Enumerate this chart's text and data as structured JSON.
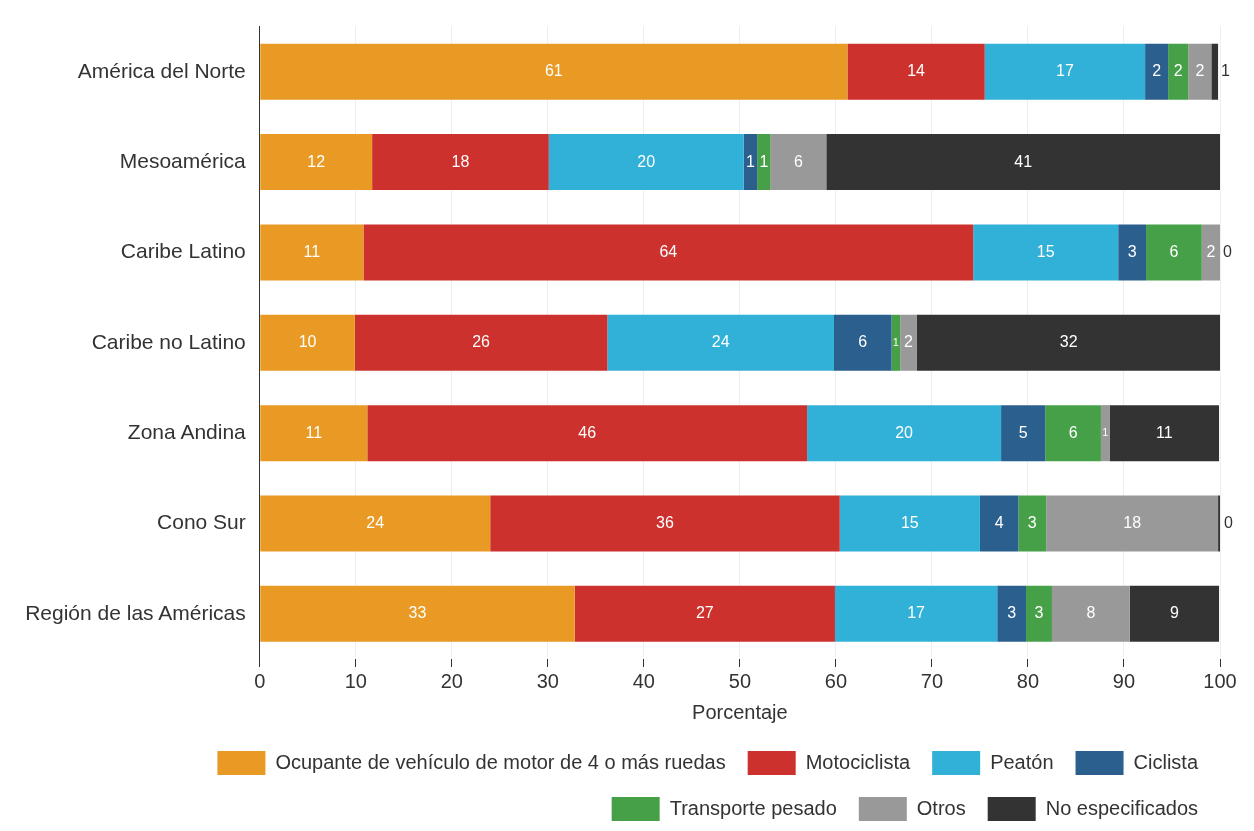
{
  "chart_data": {
    "type": "bar",
    "orientation": "horizontal",
    "stacked": true,
    "xlabel": "Porcentaje",
    "categories": [
      "América del Norte",
      "Mesoamérica",
      "Caribe Latino",
      "Caribe no Latino",
      "Zona Andina",
      "Cono Sur",
      "Región de las Américas"
    ],
    "xlim": [
      0,
      100
    ],
    "xticks": [
      0,
      10,
      20,
      30,
      40,
      50,
      60,
      70,
      80,
      90,
      100
    ],
    "grid": "x",
    "legend": "bottom",
    "series": [
      {
        "name": "Ocupante de vehículo de motor de 4 o más ruedas",
        "color": "#e99a24",
        "values": [
          61.2,
          11.7,
          10.8,
          9.9,
          11.2,
          24.0,
          32.8
        ],
        "value_labels": [
          "61",
          "12",
          "11",
          "10",
          "11",
          "24",
          "33"
        ]
      },
      {
        "name": "Motociclista",
        "color": "#cc312d",
        "values": [
          14.3,
          18.4,
          63.5,
          26.3,
          45.8,
          36.4,
          27.1
        ],
        "value_labels": [
          "14",
          "18",
          "64",
          "26",
          "46",
          "36",
          "27"
        ]
      },
      {
        "name": "Peatón",
        "color": "#31b0d8",
        "values": [
          16.7,
          20.3,
          15.1,
          23.6,
          20.2,
          14.6,
          16.9
        ],
        "value_labels": [
          "17",
          "20",
          "15",
          "24",
          "20",
          "15",
          "17"
        ]
      },
      {
        "name": "Ciclista",
        "color": "#2b5f8e",
        "values": [
          2.4,
          1.4,
          2.9,
          6.0,
          4.6,
          4.0,
          3.0
        ],
        "value_labels": [
          "2",
          "1",
          "3",
          "6",
          "5",
          "4",
          "3"
        ]
      },
      {
        "name": "Transporte pesado",
        "color": "#46a047",
        "values": [
          2.1,
          1.4,
          5.8,
          0.9,
          5.8,
          2.9,
          2.7
        ],
        "value_labels": [
          "2",
          "1",
          "6",
          "1",
          "6",
          "3",
          "3"
        ]
      },
      {
        "name": "Otros",
        "color": "#999999",
        "values": [
          2.4,
          5.8,
          1.9,
          1.7,
          0.9,
          17.9,
          8.1
        ],
        "value_labels": [
          "2",
          "6",
          "2",
          "2",
          "1",
          "18",
          "8"
        ]
      },
      {
        "name": "No especificados",
        "color": "#333333",
        "values": [
          0.7,
          41.0,
          0,
          31.7,
          11.4,
          0.3,
          9.3
        ],
        "value_labels": [
          "1",
          "41",
          "0",
          "32",
          "11",
          "0",
          "9"
        ]
      }
    ]
  }
}
